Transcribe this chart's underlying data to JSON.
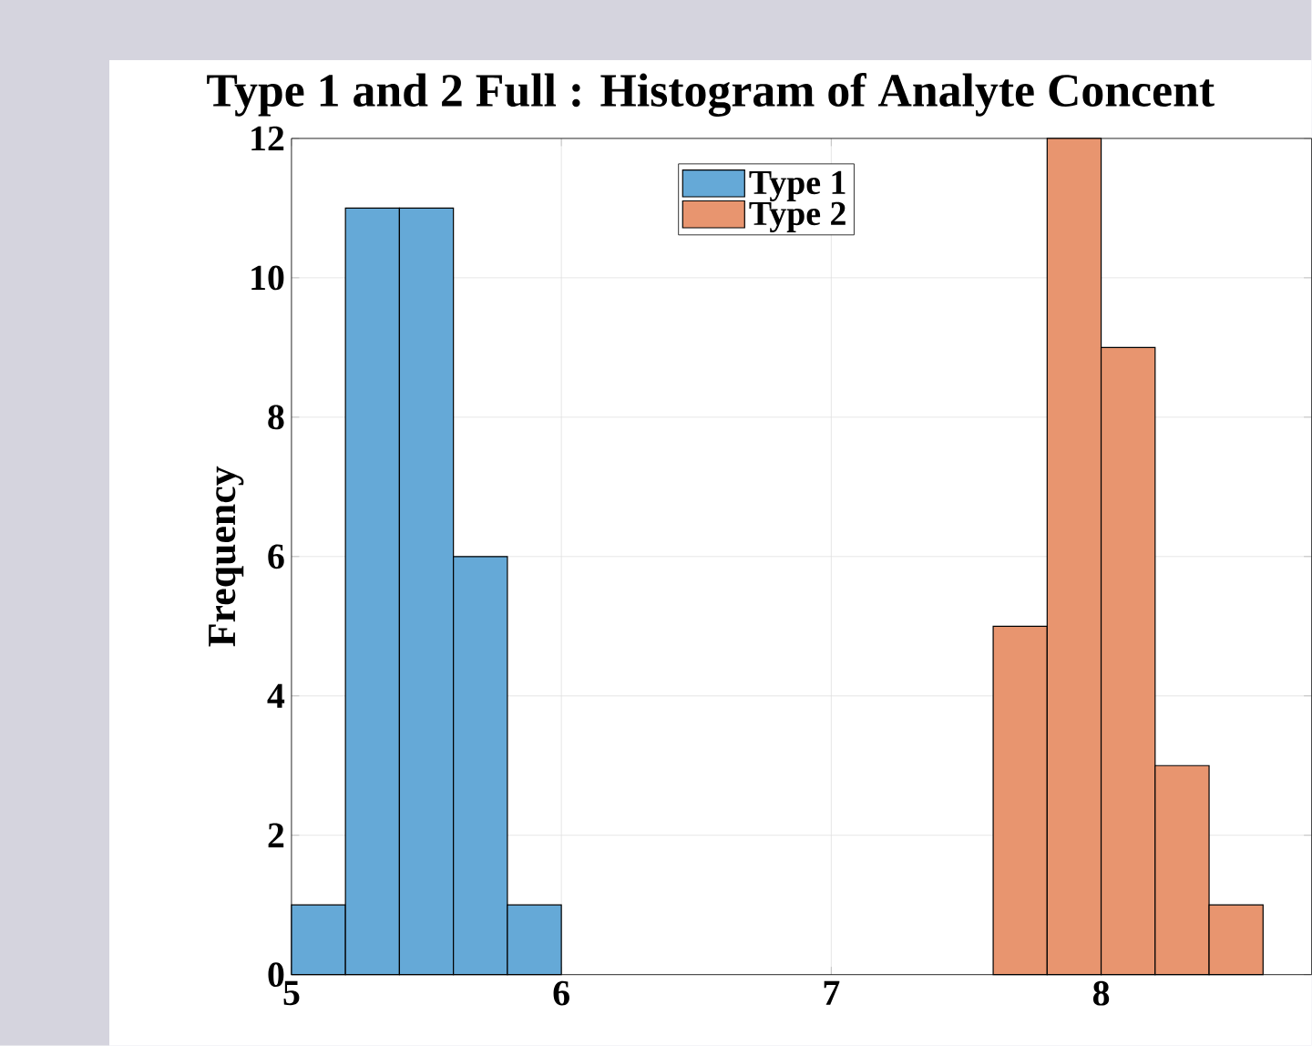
{
  "chart_data": {
    "type": "histogram",
    "title": "Type 1 and 2 Full : Histogram of Analyte Concent",
    "ylabel": "Frequency",
    "bins": [
      5.0,
      5.2,
      5.4,
      5.6,
      5.8,
      6.0,
      6.2,
      6.4,
      6.6,
      6.8,
      7.0,
      7.2,
      7.4,
      7.6,
      7.8,
      8.0,
      8.2,
      8.4,
      8.6
    ],
    "series": [
      {
        "name": "Type 1",
        "color": "#65a9d7",
        "values": [
          1,
          11,
          11,
          6,
          1,
          null,
          null,
          null,
          null,
          null,
          null,
          null,
          null,
          null,
          null,
          null,
          null,
          null
        ]
      },
      {
        "name": "Type 2",
        "color": "#e8956f",
        "values": [
          null,
          null,
          null,
          null,
          null,
          null,
          null,
          null,
          null,
          null,
          null,
          null,
          null,
          5,
          12,
          9,
          3,
          1
        ]
      }
    ],
    "xlim": [
      5,
      8.78
    ],
    "ylim": [
      0,
      12
    ],
    "xticks": [
      5,
      6,
      7,
      8
    ],
    "yticks": [
      0,
      2,
      4,
      6,
      8,
      10,
      12
    ],
    "grid": true,
    "legend": "top"
  }
}
